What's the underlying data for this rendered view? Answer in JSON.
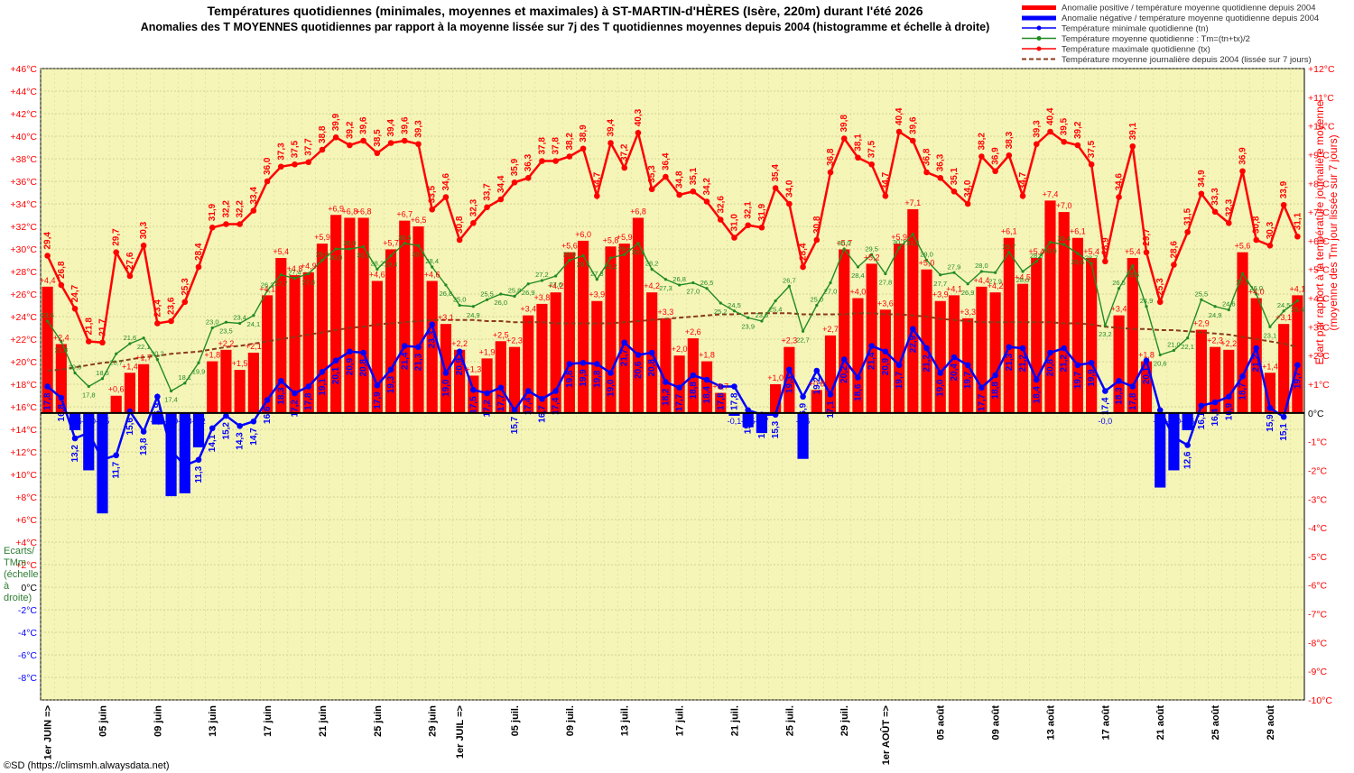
{
  "title": "Températures quotidiennes (minimales, moyennes et maximales) à ST-MARTIN-d'HÈRES (Isère, 220m) durant l'été 2026",
  "subtitle": "Anomalies des T MOYENNES quotidiennes par rapport à la moyenne lissée sur 7j des T quotidiennes moyennes depuis 2004 (histogramme et échelle à droite)",
  "right_axis_label_1": "Ecart  par rapport à la  température  journalière  moyenne",
  "right_axis_label_2": "(moyenne des Tm jour lissée sur 7 jours)",
  "left_note": [
    "Ecarts/",
    "TMm",
    "(échelle",
    "à",
    "droite)"
  ],
  "credit": "©SD (https://climsmh.alwaysdata.net)",
  "legend": [
    {
      "label": "Anomalie positive / température moyenne quotidienne depuis 2004",
      "color": "#ff0000",
      "kind": "bar"
    },
    {
      "label": "Anomalie négative / température moyenne quotidienne depuis 2004",
      "color": "#0000ff",
      "kind": "bar"
    },
    {
      "label": "Température minimale quotidienne (tn)",
      "color": "#0000ff",
      "kind": "line"
    },
    {
      "label": "Température moyenne quotidienne : Tm=(tn+tx)/2",
      "color": "#228b22",
      "kind": "line"
    },
    {
      "label": "Température maximale quotidienne (tx)",
      "color": "#ff0000",
      "kind": "line"
    },
    {
      "label": "Température moyenne journalière depuis 2004 (lissée sur 7 jours)",
      "color": "#8b3a1a",
      "kind": "dash"
    }
  ],
  "chart_data": {
    "type": "line",
    "left_axis": {
      "min": -10,
      "max": 46,
      "step": 2,
      "labels_from": -8,
      "unit": "°C"
    },
    "right_axis": {
      "min": -10,
      "max": 12,
      "step": 1,
      "unit": "°C"
    },
    "x_tick_labels": [
      {
        "i": 0,
        "label": "1er JUIN =>"
      },
      {
        "i": 4,
        "label": "05 juin"
      },
      {
        "i": 8,
        "label": "09 juin"
      },
      {
        "i": 12,
        "label": "13 juin"
      },
      {
        "i": 16,
        "label": "17 juin"
      },
      {
        "i": 20,
        "label": "21 juin"
      },
      {
        "i": 24,
        "label": "25 juin"
      },
      {
        "i": 28,
        "label": "29 juin"
      },
      {
        "i": 30,
        "label": "1er JUIL =>"
      },
      {
        "i": 34,
        "label": "05 juil."
      },
      {
        "i": 38,
        "label": "09 juil."
      },
      {
        "i": 42,
        "label": "13 juil."
      },
      {
        "i": 46,
        "label": "17 juil."
      },
      {
        "i": 50,
        "label": "21 juil."
      },
      {
        "i": 54,
        "label": "25 juil."
      },
      {
        "i": 58,
        "label": "29 juil."
      },
      {
        "i": 61,
        "label": "1er AOÛT =>"
      },
      {
        "i": 65,
        "label": "05 août"
      },
      {
        "i": 69,
        "label": "09 août"
      },
      {
        "i": 73,
        "label": "13 août"
      },
      {
        "i": 77,
        "label": "17 août"
      },
      {
        "i": 81,
        "label": "21 août"
      },
      {
        "i": 85,
        "label": "25 août"
      },
      {
        "i": 89,
        "label": "29 août"
      }
    ],
    "tx": [
      29.4,
      26.8,
      24.7,
      21.8,
      21.7,
      29.7,
      27.6,
      30.3,
      23.4,
      23.6,
      25.3,
      28.4,
      31.9,
      32.2,
      32.2,
      33.4,
      36.0,
      37.3,
      37.5,
      37.7,
      38.8,
      39.9,
      39.2,
      39.6,
      38.5,
      39.4,
      39.6,
      39.3,
      33.5,
      34.6,
      30.8,
      32.3,
      33.7,
      34.4,
      35.9,
      36.3,
      37.8,
      37.8,
      38.2,
      38.9,
      34.7,
      39.4,
      37.2,
      40.3,
      35.3,
      36.4,
      34.8,
      35.1,
      34.2,
      32.6,
      31.0,
      32.1,
      31.9,
      35.4,
      34.0,
      28.4,
      30.8,
      36.8,
      39.8,
      38.1,
      37.5,
      34.7,
      40.4,
      39.6,
      36.8,
      36.3,
      35.1,
      34.0,
      38.2,
      36.9,
      38.3,
      34.7,
      39.3,
      40.4,
      39.5,
      39.2,
      37.5,
      28.9,
      34.6,
      39.1,
      29.7,
      25.3,
      28.6,
      31.5,
      34.9,
      33.3,
      32.3,
      36.9,
      30.8,
      30.3,
      33.9,
      31.1
    ],
    "tm": [
      23.6,
      21.8,
      19.0,
      17.8,
      18.5,
      20.7,
      21.6,
      22.1,
      20.2,
      17.4,
      18.1,
      19.9,
      23.0,
      23.5,
      23.4,
      24.1,
      26.3,
      27.7,
      27.4,
      27.8,
      29.0,
      30.0,
      30.0,
      30.2,
      28.2,
      29.4,
      30.5,
      30.3,
      28.4,
      26.8,
      25.0,
      24.9,
      25.5,
      26.0,
      25.8,
      26.9,
      27.2,
      27.6,
      29.0,
      29.4,
      27.3,
      29.2,
      29.5,
      30.5,
      28.2,
      27.3,
      26.8,
      27.0,
      26.5,
      25.2,
      24.5,
      23.9,
      23.6,
      25.4,
      26.7,
      22.7,
      25.0,
      27.0,
      30.0,
      28.4,
      29.5,
      27.8,
      30.1,
      31.3,
      29.0,
      27.7,
      27.9,
      26.9,
      28.0,
      27.9,
      29.7,
      28.0,
      28.9,
      30.6,
      30.4,
      29.6,
      28.7,
      23.2,
      26.5,
      28.5,
      24.9,
      20.6,
      21.0,
      22.1,
      25.5,
      24.9,
      24.6,
      27.8,
      26.0,
      23.1,
      24.5,
      25.4
    ],
    "tn": [
      17.8,
      16.8,
      13.2,
      13.7,
      11.3,
      11.7,
      15.6,
      13.8,
      16.9,
      12.1,
      10.8,
      11.3,
      14.1,
      15.2,
      14.3,
      14.7,
      16.6,
      18.3,
      17.2,
      17.8,
      19.1,
      20.1,
      20.9,
      20.8,
      17.9,
      19.3,
      21.4,
      21.3,
      23.3,
      19.0,
      20.9,
      17.5,
      17.2,
      17.7,
      15.7,
      17.4,
      16.7,
      17.4,
      19.8,
      19.9,
      19.8,
      19.0,
      21.7,
      20.6,
      20.8,
      18.2,
      17.7,
      18.8,
      18.4,
      17.8,
      17.8,
      15.7,
      15.3,
      15.3,
      19.3,
      16.9,
      19.2,
      17.1,
      20.2,
      18.6,
      21.4,
      20.9,
      19.7,
      22.9,
      21.2,
      19.0,
      20.4,
      19.7,
      17.7,
      18.8,
      21.3,
      21.2,
      18.4,
      20.8,
      21.2,
      19.7,
      19.9,
      17.4,
      18.3,
      17.8,
      20.1,
      15.7,
      13.3,
      12.6,
      16.1,
      16.4,
      16.9,
      18.7,
      21.2,
      15.9,
      15.1,
      19.7
    ],
    "normal": [
      19.2,
      19.3,
      19.5,
      19.7,
      19.9,
      20.0,
      20.2,
      20.4,
      20.5,
      20.7,
      20.8,
      20.9,
      21.1,
      21.3,
      21.4,
      21.6,
      21.8,
      22.0,
      22.2,
      22.4,
      22.6,
      22.8,
      23.0,
      23.1,
      23.3,
      23.4,
      23.5,
      23.6,
      23.7,
      23.7,
      23.7,
      23.7,
      23.6,
      23.6,
      23.5,
      23.5,
      23.5,
      23.4,
      23.4,
      23.4,
      23.4,
      23.4,
      23.5,
      23.6,
      23.7,
      23.8,
      23.9,
      24.0,
      24.1,
      24.2,
      24.2,
      24.3,
      24.3,
      24.3,
      24.3,
      24.2,
      24.2,
      24.2,
      24.2,
      24.3,
      24.3,
      24.2,
      24.2,
      24.1,
      24.0,
      23.8,
      23.7,
      23.6,
      23.5,
      23.5,
      23.5,
      23.5,
      23.5,
      23.5,
      23.4,
      23.4,
      23.3,
      23.1,
      23.0,
      22.9,
      22.9,
      22.8,
      22.8,
      22.7,
      22.6,
      22.5,
      22.4,
      22.2,
      22.0,
      21.8,
      21.6,
      21.3
    ],
    "anomaly": [
      4.4,
      2.4,
      -0.6,
      -2.0,
      -3.5,
      0.6,
      1.4,
      1.7,
      -0.4,
      -2.9,
      -2.8,
      -1.2,
      1.8,
      2.2,
      1.5,
      2.1,
      4.1,
      5.4,
      4.8,
      4.9,
      5.9,
      6.9,
      6.8,
      6.8,
      4.6,
      5.7,
      6.7,
      6.5,
      4.6,
      3.1,
      2.2,
      1.3,
      1.9,
      2.5,
      2.3,
      3.4,
      3.8,
      4.2,
      5.6,
      6.0,
      3.9,
      5.8,
      5.9,
      6.8,
      4.2,
      3.3,
      2.0,
      2.6,
      1.8,
      0.7,
      -0.1,
      -0.5,
      -0.7,
      1.0,
      2.3,
      -1.6,
      0.8,
      2.7,
      5.7,
      4.0,
      5.2,
      3.6,
      5.9,
      7.1,
      5.0,
      3.9,
      4.1,
      3.3,
      4.4,
      4.2,
      6.1,
      4.5,
      5.4,
      7.4,
      7.0,
      6.1,
      5.4,
      -0.0,
      3.4,
      5.4,
      1.8,
      -2.6,
      -2.0,
      -0.6,
      2.9,
      2.3,
      2.2,
      5.6,
      4.0,
      1.4,
      3.1,
      4.1
    ]
  }
}
